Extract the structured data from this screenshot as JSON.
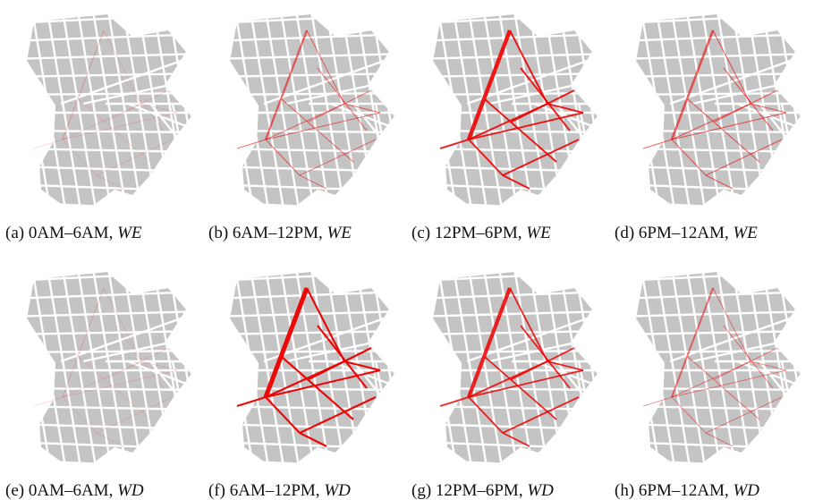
{
  "panels": [
    {
      "label": "(a)",
      "time": "0AM–6AM,",
      "group": "WE"
    },
    {
      "label": "(b)",
      "time": "6AM–12PM,",
      "group": "WE"
    },
    {
      "label": "(c)",
      "time": "12PM–6PM,",
      "group": "WE"
    },
    {
      "label": "(d)",
      "time": "6PM–12AM,",
      "group": "WE"
    },
    {
      "label": "(e)",
      "time": "0AM–6AM,",
      "group": "WD"
    },
    {
      "label": "(f)",
      "time": "6AM–12PM,",
      "group": "WD"
    },
    {
      "label": "(g)",
      "time": "12PM–6PM,",
      "group": "WD"
    },
    {
      "label": "(h)",
      "time": "6PM–12AM,",
      "group": "WD"
    }
  ]
}
